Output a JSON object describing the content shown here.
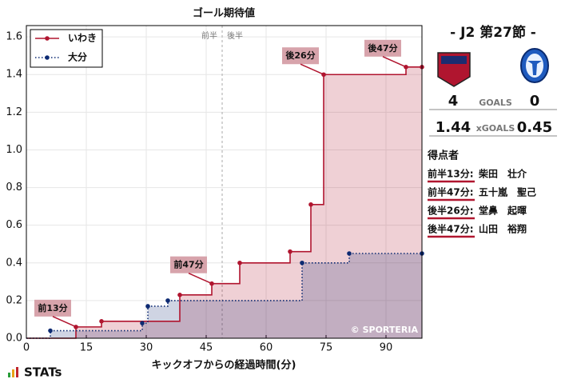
{
  "chart_data": {
    "type": "step",
    "title": "ゴール期待値",
    "x_label": "キックオフからの経過時間(分)",
    "series": [
      {
        "name": "いわき",
        "color": "#b0152f",
        "line": "solid",
        "x": [
          0,
          12.4,
          18.8,
          38.4,
          46.4,
          53.4,
          66,
          71.2,
          74.4,
          95,
          99
        ],
        "values": [
          0,
          0.06,
          0.09,
          0.23,
          0.29,
          0.4,
          0.46,
          0.71,
          1.4,
          1.44,
          1.44
        ]
      },
      {
        "name": "大分",
        "color": "#0d2a72",
        "line": "dotted",
        "x": [
          0,
          6,
          29,
          30.4,
          35.4,
          69,
          80.8,
          99
        ],
        "values": [
          0,
          0.04,
          0.08,
          0.17,
          0.2,
          0.4,
          0.45,
          0.45
        ]
      }
    ],
    "xlim": [
      0,
      99
    ],
    "xticks": [
      0,
      15,
      30,
      45,
      60,
      75,
      90
    ],
    "ylim": [
      0,
      1.66
    ],
    "yticks": [
      {
        "value": 0,
        "label": "0.0"
      },
      0.2,
      0.4,
      0.6,
      0.8,
      {
        "value": 1,
        "label": "1.0"
      },
      1.2,
      1.4,
      1.6
    ],
    "grid": true,
    "legend": "upper-left",
    "halftime": {
      "x": 49,
      "first": "前半",
      "second": "後半"
    },
    "annotations": [
      {
        "text": "前13分",
        "x": 12.4,
        "y": 0.06
      },
      {
        "text": "前47分",
        "x": 46.4,
        "y": 0.29
      },
      {
        "text": "後26分",
        "x": 74.4,
        "y": 1.4
      },
      {
        "text": "後47分",
        "x": 95,
        "y": 1.44
      }
    ],
    "watermark": "© SPORTERIA"
  },
  "panel": {
    "match": "- J2 第27節 -",
    "home": {
      "goals": 4,
      "xgoals": 1.44
    },
    "away": {
      "goals": 0,
      "xgoals": 0.45
    },
    "goals_label": "GOALS",
    "xgoals_label": "xGOALS",
    "scorers_title": "得点者",
    "scorers": [
      {
        "time": "前半13分:",
        "name": "柴田　壮介"
      },
      {
        "time": "前半47分:",
        "name": "五十嵐　聖己"
      },
      {
        "time": "後半26分:",
        "name": "堂鼻　起暉"
      },
      {
        "time": "後半47分:",
        "name": "山田　裕翔"
      }
    ],
    "logo_text": "STATs"
  }
}
